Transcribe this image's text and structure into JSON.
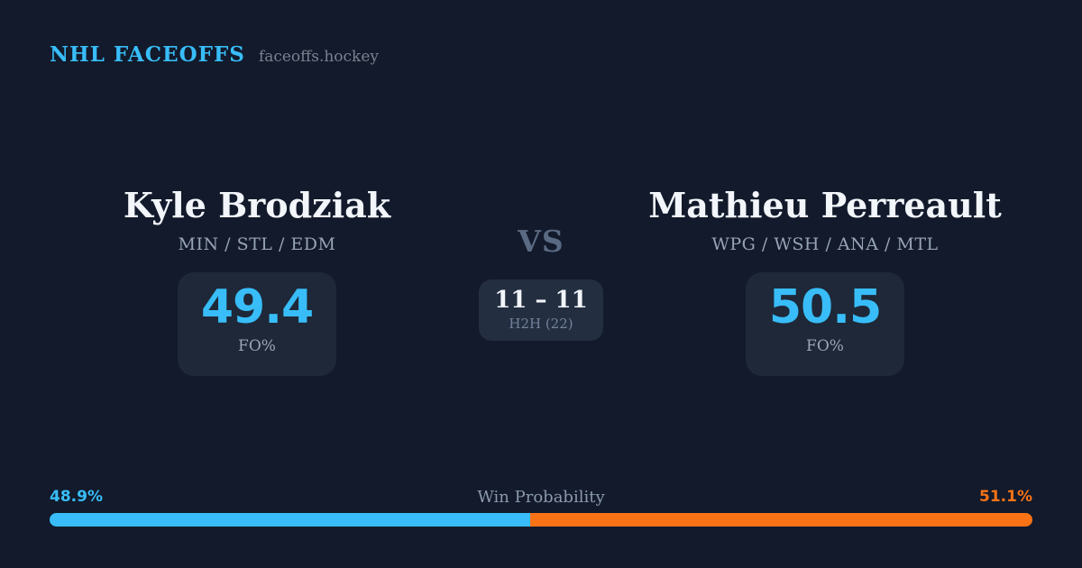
{
  "header": {
    "brand": "NHL FACEOFFS",
    "site": "faceoffs.hockey"
  },
  "matchup": {
    "players": [
      {
        "name": "Kyle Brodziak",
        "teams": "MIN / STL / EDM",
        "fo_pct": "49.4",
        "stat_label": "FO%"
      },
      {
        "name": "Mathieu Perreault",
        "teams": "WPG / WSH / ANA / MTL",
        "fo_pct": "50.5",
        "stat_label": "FO%"
      }
    ],
    "vs_label": "VS",
    "h2h": {
      "score": "11 – 11",
      "label": "H2H (22)"
    }
  },
  "win_probability": {
    "label": "Win Probability",
    "left_pct_label": "48.9%",
    "right_pct_label": "51.1%",
    "left_value": 48.9,
    "right_value": 51.1,
    "left_color": "#38BDF8",
    "right_color": "#F97316"
  },
  "colors": {
    "background": "#121A2B",
    "card": "#1E2838",
    "h2h_card": "#232E40",
    "accent_blue": "#38BDF8",
    "accent_orange": "#F97316",
    "text_primary": "#F2F5F9",
    "text_muted": "#97A3B6"
  }
}
